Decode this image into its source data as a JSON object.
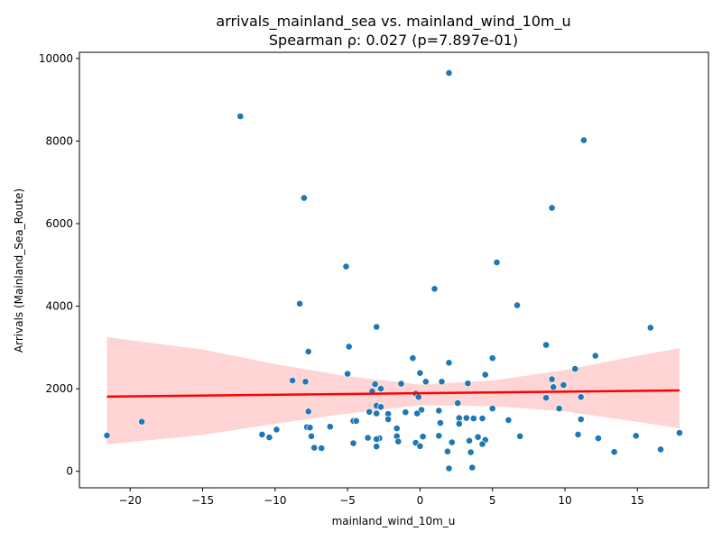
{
  "chart_data": {
    "type": "scatter",
    "title": "arrivals_mainland_sea vs. mainland_wind_10m_u",
    "subtitle": "Spearman ρ: 0.027 (p=7.897e-01)",
    "xlabel": "mainland_wind_10m_u",
    "ylabel": "Arrivals (Mainland_Sea_Route)",
    "xlim": [
      -23.5,
      19.9
    ],
    "ylim": [
      -400,
      10150
    ],
    "xticks": [
      -20,
      -15,
      -10,
      -5,
      0,
      5,
      10,
      15
    ],
    "xtick_labels": [
      "−20",
      "−15",
      "−10",
      "−5",
      "0",
      "5",
      "10",
      "15"
    ],
    "yticks": [
      0,
      2000,
      4000,
      6000,
      8000,
      10000
    ],
    "ytick_labels": [
      "0",
      "2000",
      "4000",
      "6000",
      "8000",
      "10000"
    ],
    "grid": false,
    "colors": {
      "points": "#1f77b4",
      "regression_line": "#ff0000",
      "confidence_band": "#ffcccc"
    },
    "regression": {
      "x": [
        -21.6,
        17.9
      ],
      "y": [
        1810,
        1960
      ]
    },
    "confidence_band": {
      "x": [
        -21.6,
        -15,
        -10,
        -5,
        0,
        5,
        10,
        15,
        17.9
      ],
      "upper": [
        3250,
        2950,
        2600,
        2300,
        2100,
        2200,
        2450,
        2800,
        2980
      ],
      "lower": [
        650,
        880,
        1150,
        1400,
        1600,
        1580,
        1450,
        1200,
        1040
      ]
    },
    "points": [
      {
        "x": 2.0,
        "y": 9650
      },
      {
        "x": -12.4,
        "y": 8600
      },
      {
        "x": 11.3,
        "y": 8020
      },
      {
        "x": -8.0,
        "y": 6620
      },
      {
        "x": 9.1,
        "y": 6380
      },
      {
        "x": 5.3,
        "y": 5060
      },
      {
        "x": -5.1,
        "y": 4960
      },
      {
        "x": 1.0,
        "y": 4420
      },
      {
        "x": -8.3,
        "y": 4060
      },
      {
        "x": 6.7,
        "y": 4020
      },
      {
        "x": -3.0,
        "y": 3500
      },
      {
        "x": 15.9,
        "y": 3480
      },
      {
        "x": 8.7,
        "y": 3060
      },
      {
        "x": -4.9,
        "y": 3020
      },
      {
        "x": -7.7,
        "y": 2900
      },
      {
        "x": 12.1,
        "y": 2800
      },
      {
        "x": -0.5,
        "y": 2740
      },
      {
        "x": 5.0,
        "y": 2740
      },
      {
        "x": 2.0,
        "y": 2630
      },
      {
        "x": 10.7,
        "y": 2480
      },
      {
        "x": -5.0,
        "y": 2360
      },
      {
        "x": 0.0,
        "y": 2380
      },
      {
        "x": 4.5,
        "y": 2340
      },
      {
        "x": 9.1,
        "y": 2230
      },
      {
        "x": -8.8,
        "y": 2200
      },
      {
        "x": -7.9,
        "y": 2170
      },
      {
        "x": 0.4,
        "y": 2170
      },
      {
        "x": 1.5,
        "y": 2170
      },
      {
        "x": 3.3,
        "y": 2130
      },
      {
        "x": -1.3,
        "y": 2120
      },
      {
        "x": -3.1,
        "y": 2110
      },
      {
        "x": 9.9,
        "y": 2090
      },
      {
        "x": 9.2,
        "y": 2040
      },
      {
        "x": -2.7,
        "y": 2000
      },
      {
        "x": -3.3,
        "y": 1940
      },
      {
        "x": -0.3,
        "y": 1880
      },
      {
        "x": -0.1,
        "y": 1800
      },
      {
        "x": 8.7,
        "y": 1780
      },
      {
        "x": 11.1,
        "y": 1800
      },
      {
        "x": 2.6,
        "y": 1650
      },
      {
        "x": -3.0,
        "y": 1590
      },
      {
        "x": -2.7,
        "y": 1560
      },
      {
        "x": 5.0,
        "y": 1520
      },
      {
        "x": 9.6,
        "y": 1520
      },
      {
        "x": 0.1,
        "y": 1490
      },
      {
        "x": 1.3,
        "y": 1470
      },
      {
        "x": -7.7,
        "y": 1450
      },
      {
        "x": -3.5,
        "y": 1440
      },
      {
        "x": -1.0,
        "y": 1430
      },
      {
        "x": -3.0,
        "y": 1400
      },
      {
        "x": -0.2,
        "y": 1400
      },
      {
        "x": -2.2,
        "y": 1390
      },
      {
        "x": 3.2,
        "y": 1290
      },
      {
        "x": 2.7,
        "y": 1290
      },
      {
        "x": 3.7,
        "y": 1280
      },
      {
        "x": 4.3,
        "y": 1280
      },
      {
        "x": -2.2,
        "y": 1260
      },
      {
        "x": 11.1,
        "y": 1260
      },
      {
        "x": 6.1,
        "y": 1240
      },
      {
        "x": -4.6,
        "y": 1220
      },
      {
        "x": -4.4,
        "y": 1220
      },
      {
        "x": -19.2,
        "y": 1200
      },
      {
        "x": 1.4,
        "y": 1170
      },
      {
        "x": 2.7,
        "y": 1150
      },
      {
        "x": -6.2,
        "y": 1080
      },
      {
        "x": -7.8,
        "y": 1070
      },
      {
        "x": -7.6,
        "y": 1060
      },
      {
        "x": -1.6,
        "y": 1040
      },
      {
        "x": -9.9,
        "y": 1010
      },
      {
        "x": 17.9,
        "y": 930
      },
      {
        "x": 10.9,
        "y": 890
      },
      {
        "x": -10.9,
        "y": 890
      },
      {
        "x": -21.6,
        "y": 870
      },
      {
        "x": 1.3,
        "y": 860
      },
      {
        "x": 14.9,
        "y": 860
      },
      {
        "x": 6.9,
        "y": 850
      },
      {
        "x": -7.5,
        "y": 850
      },
      {
        "x": -1.6,
        "y": 850
      },
      {
        "x": 0.2,
        "y": 840
      },
      {
        "x": 4.0,
        "y": 830
      },
      {
        "x": -10.4,
        "y": 820
      },
      {
        "x": -3.6,
        "y": 810
      },
      {
        "x": -2.8,
        "y": 800
      },
      {
        "x": 12.3,
        "y": 800
      },
      {
        "x": -3.0,
        "y": 780
      },
      {
        "x": 4.5,
        "y": 760
      },
      {
        "x": 3.4,
        "y": 740
      },
      {
        "x": -1.5,
        "y": 720
      },
      {
        "x": 2.2,
        "y": 700
      },
      {
        "x": -0.3,
        "y": 690
      },
      {
        "x": -4.6,
        "y": 680
      },
      {
        "x": 4.3,
        "y": 660
      },
      {
        "x": 0.0,
        "y": 610
      },
      {
        "x": -3.0,
        "y": 600
      },
      {
        "x": -7.3,
        "y": 570
      },
      {
        "x": -6.8,
        "y": 560
      },
      {
        "x": 16.6,
        "y": 530
      },
      {
        "x": 1.9,
        "y": 480
      },
      {
        "x": 13.4,
        "y": 470
      },
      {
        "x": 3.5,
        "y": 460
      },
      {
        "x": 3.6,
        "y": 90
      },
      {
        "x": 2.0,
        "y": 70
      }
    ]
  }
}
